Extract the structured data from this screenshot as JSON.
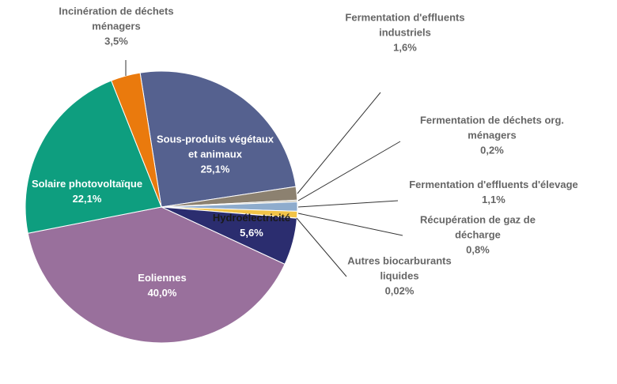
{
  "chart_data": {
    "type": "pie",
    "title": "",
    "slices": [
      {
        "label": [
          "Sous-produits végétaux",
          "et animaux"
        ],
        "value_label": "25,1%",
        "value": 25.1,
        "color": "#55618f"
      },
      {
        "label": [
          "Fermentation d'effluents",
          "industriels"
        ],
        "value_label": "1,6%",
        "value": 1.6,
        "color": "#8c8170"
      },
      {
        "label": [
          "Fermentation de déchets org.",
          "ménagers"
        ],
        "value_label": "0,2%",
        "value": 0.2,
        "color": "#c0bba9"
      },
      {
        "label": [
          "Fermentation d'effluents d'élevage"
        ],
        "value_label": "1,1%",
        "value": 1.1,
        "color": "#8eaccd"
      },
      {
        "label": [
          "Récupération de gaz de",
          "décharge"
        ],
        "value_label": "0,8%",
        "value": 0.8,
        "color": "#f2c448"
      },
      {
        "label": [
          "Autres biocarburants",
          "liquides"
        ],
        "value_label": "0,02%",
        "value": 0.02,
        "color": "#bdbdbd"
      },
      {
        "label": [
          "Hydroélectricité"
        ],
        "value_label": "5,6%",
        "value": 5.6,
        "color": "#2b2d6f"
      },
      {
        "label": [
          "Eoliennes"
        ],
        "value_label": "40,0%",
        "value": 40.0,
        "color": "#99709c"
      },
      {
        "label": [
          "Solaire photovoltaïque"
        ],
        "value_label": "22,1%",
        "value": 22.1,
        "color": "#0e9e7f"
      },
      {
        "label": [
          "Incinération de déchets",
          "ménagers"
        ],
        "value_label": "3,5%",
        "value": 3.5,
        "color": "#ea7a0d"
      }
    ]
  }
}
